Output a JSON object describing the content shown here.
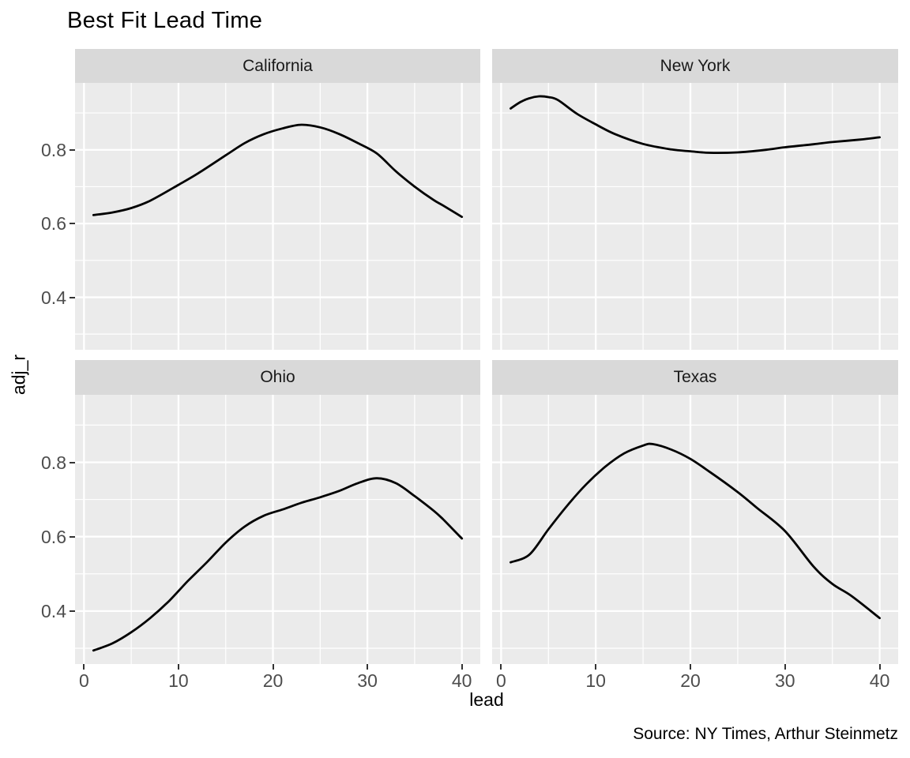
{
  "title": "Best Fit Lead Time",
  "caption": "Source: NY Times, Arthur Steinmetz",
  "colors": {
    "panel_bg": "#EBEBEB",
    "strip_bg": "#D9D9D9",
    "grid": "#FFFFFF",
    "axis_text": "#4D4D4D",
    "tick_mark": "#333333",
    "line": "#000000"
  },
  "chart_data": {
    "type": "line",
    "title": "Best Fit Lead Time",
    "xlabel": "lead",
    "ylabel": "adj_r",
    "caption": "Source: NY Times, Arthur Steinmetz",
    "faceted": true,
    "facet_layout": "2x2 grid, shared x and y scales",
    "x_domain": [
      -0.95,
      41.95
    ],
    "y_domain": [
      0.2575,
      0.9815
    ],
    "x_major_ticks": [
      0,
      10,
      20,
      30,
      40
    ],
    "x_minor_gridlines": [
      5,
      15,
      25,
      35
    ],
    "y_major_ticks": [
      0.8,
      0.6,
      0.4
    ],
    "y_minor_gridlines": [
      0.9,
      0.7,
      0.5,
      0.3
    ],
    "grid": "white major and minor lines on grey panel",
    "legend": "none",
    "facets": [
      {
        "label": "California",
        "points": [
          [
            1,
            0.623
          ],
          [
            3,
            0.63
          ],
          [
            5,
            0.642
          ],
          [
            7,
            0.662
          ],
          [
            10,
            0.705
          ],
          [
            12,
            0.735
          ],
          [
            15,
            0.785
          ],
          [
            17,
            0.818
          ],
          [
            19,
            0.842
          ],
          [
            21,
            0.858
          ],
          [
            23,
            0.868
          ],
          [
            25,
            0.861
          ],
          [
            27,
            0.843
          ],
          [
            29,
            0.818
          ],
          [
            31,
            0.79
          ],
          [
            33,
            0.742
          ],
          [
            35,
            0.7
          ],
          [
            37,
            0.664
          ],
          [
            38,
            0.649
          ],
          [
            40,
            0.618
          ]
        ]
      },
      {
        "label": "New York",
        "points": [
          [
            1,
            0.912
          ],
          [
            2,
            0.929
          ],
          [
            3,
            0.94
          ],
          [
            4,
            0.945
          ],
          [
            5,
            0.943
          ],
          [
            6,
            0.935
          ],
          [
            8,
            0.898
          ],
          [
            10,
            0.869
          ],
          [
            12,
            0.843
          ],
          [
            15,
            0.816
          ],
          [
            18,
            0.801
          ],
          [
            20,
            0.796
          ],
          [
            22,
            0.792
          ],
          [
            25,
            0.793
          ],
          [
            28,
            0.8
          ],
          [
            30,
            0.807
          ],
          [
            33,
            0.815
          ],
          [
            35,
            0.821
          ],
          [
            38,
            0.828
          ],
          [
            40,
            0.834
          ]
        ]
      },
      {
        "label": "Ohio",
        "points": [
          [
            1,
            0.294
          ],
          [
            3,
            0.313
          ],
          [
            5,
            0.343
          ],
          [
            7,
            0.381
          ],
          [
            9,
            0.427
          ],
          [
            11,
            0.481
          ],
          [
            13,
            0.531
          ],
          [
            15,
            0.584
          ],
          [
            17,
            0.627
          ],
          [
            19,
            0.656
          ],
          [
            21,
            0.673
          ],
          [
            23,
            0.691
          ],
          [
            25,
            0.706
          ],
          [
            27,
            0.723
          ],
          [
            29,
            0.744
          ],
          [
            31,
            0.757
          ],
          [
            33,
            0.744
          ],
          [
            35,
            0.709
          ],
          [
            37,
            0.67
          ],
          [
            38,
            0.647
          ],
          [
            40,
            0.595
          ]
        ]
      },
      {
        "label": "Texas",
        "points": [
          [
            1,
            0.531
          ],
          [
            3,
            0.552
          ],
          [
            5,
            0.62
          ],
          [
            7,
            0.684
          ],
          [
            9,
            0.741
          ],
          [
            11,
            0.788
          ],
          [
            13,
            0.824
          ],
          [
            15,
            0.845
          ],
          [
            16,
            0.849
          ],
          [
            18,
            0.834
          ],
          [
            20,
            0.809
          ],
          [
            22,
            0.775
          ],
          [
            25,
            0.72
          ],
          [
            27,
            0.678
          ],
          [
            30,
            0.615
          ],
          [
            33,
            0.52
          ],
          [
            35,
            0.473
          ],
          [
            37,
            0.441
          ],
          [
            40,
            0.381
          ]
        ]
      }
    ]
  }
}
